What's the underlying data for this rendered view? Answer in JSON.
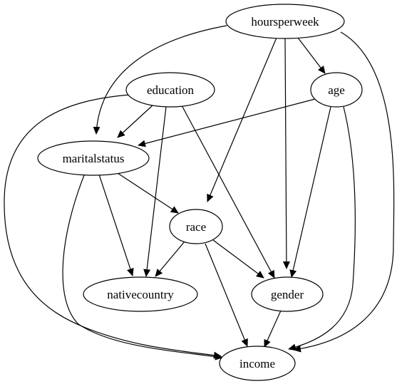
{
  "graph": {
    "nodes": {
      "hoursperweek": "hoursperweek",
      "education": "education",
      "age": "age",
      "maritalstatus": "maritalstatus",
      "race": "race",
      "nativecountry": "nativecountry",
      "gender": "gender",
      "income": "income"
    },
    "edges": [
      {
        "from": "hoursperweek",
        "to": "maritalstatus"
      },
      {
        "from": "hoursperweek",
        "to": "race"
      },
      {
        "from": "hoursperweek",
        "to": "gender"
      },
      {
        "from": "hoursperweek",
        "to": "age"
      },
      {
        "from": "hoursperweek",
        "to": "income"
      },
      {
        "from": "education",
        "to": "income"
      },
      {
        "from": "education",
        "to": "maritalstatus"
      },
      {
        "from": "education",
        "to": "nativecountry"
      },
      {
        "from": "education",
        "to": "gender"
      },
      {
        "from": "age",
        "to": "maritalstatus"
      },
      {
        "from": "age",
        "to": "gender"
      },
      {
        "from": "age",
        "to": "income"
      },
      {
        "from": "maritalstatus",
        "to": "race"
      },
      {
        "from": "maritalstatus",
        "to": "nativecountry"
      },
      {
        "from": "maritalstatus",
        "to": "income"
      },
      {
        "from": "race",
        "to": "nativecountry"
      },
      {
        "from": "race",
        "to": "gender"
      },
      {
        "from": "race",
        "to": "income"
      },
      {
        "from": "gender",
        "to": "income"
      }
    ]
  }
}
